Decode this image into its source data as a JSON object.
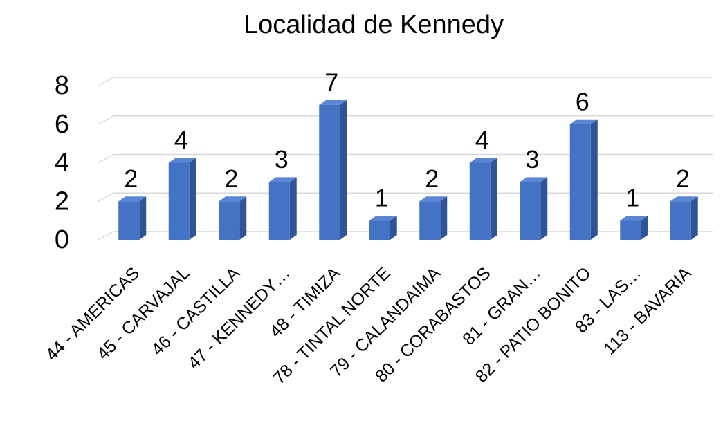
{
  "chart_data": {
    "type": "bar3d",
    "title": "Localidad de Kennedy",
    "categories": [
      "44 - AMERICAS",
      "45 - CARVAJAL",
      "46 - CASTILLA",
      "47 - KENNEDY…",
      "48 - TIMIZA",
      "78 - TINTAL NORTE",
      "79 - CALANDAIMA",
      "80 - CORABASTOS",
      "81 - GRAN…",
      "82 - PATIO BONITO",
      "83 - LAS…",
      "113 - BAVARIA"
    ],
    "values": [
      2,
      4,
      2,
      3,
      7,
      1,
      2,
      4,
      3,
      6,
      1,
      2
    ],
    "color": "#4472c4",
    "ylim": [
      0,
      8
    ],
    "yticks": [
      0,
      2,
      4,
      6,
      8
    ],
    "grid": true
  }
}
